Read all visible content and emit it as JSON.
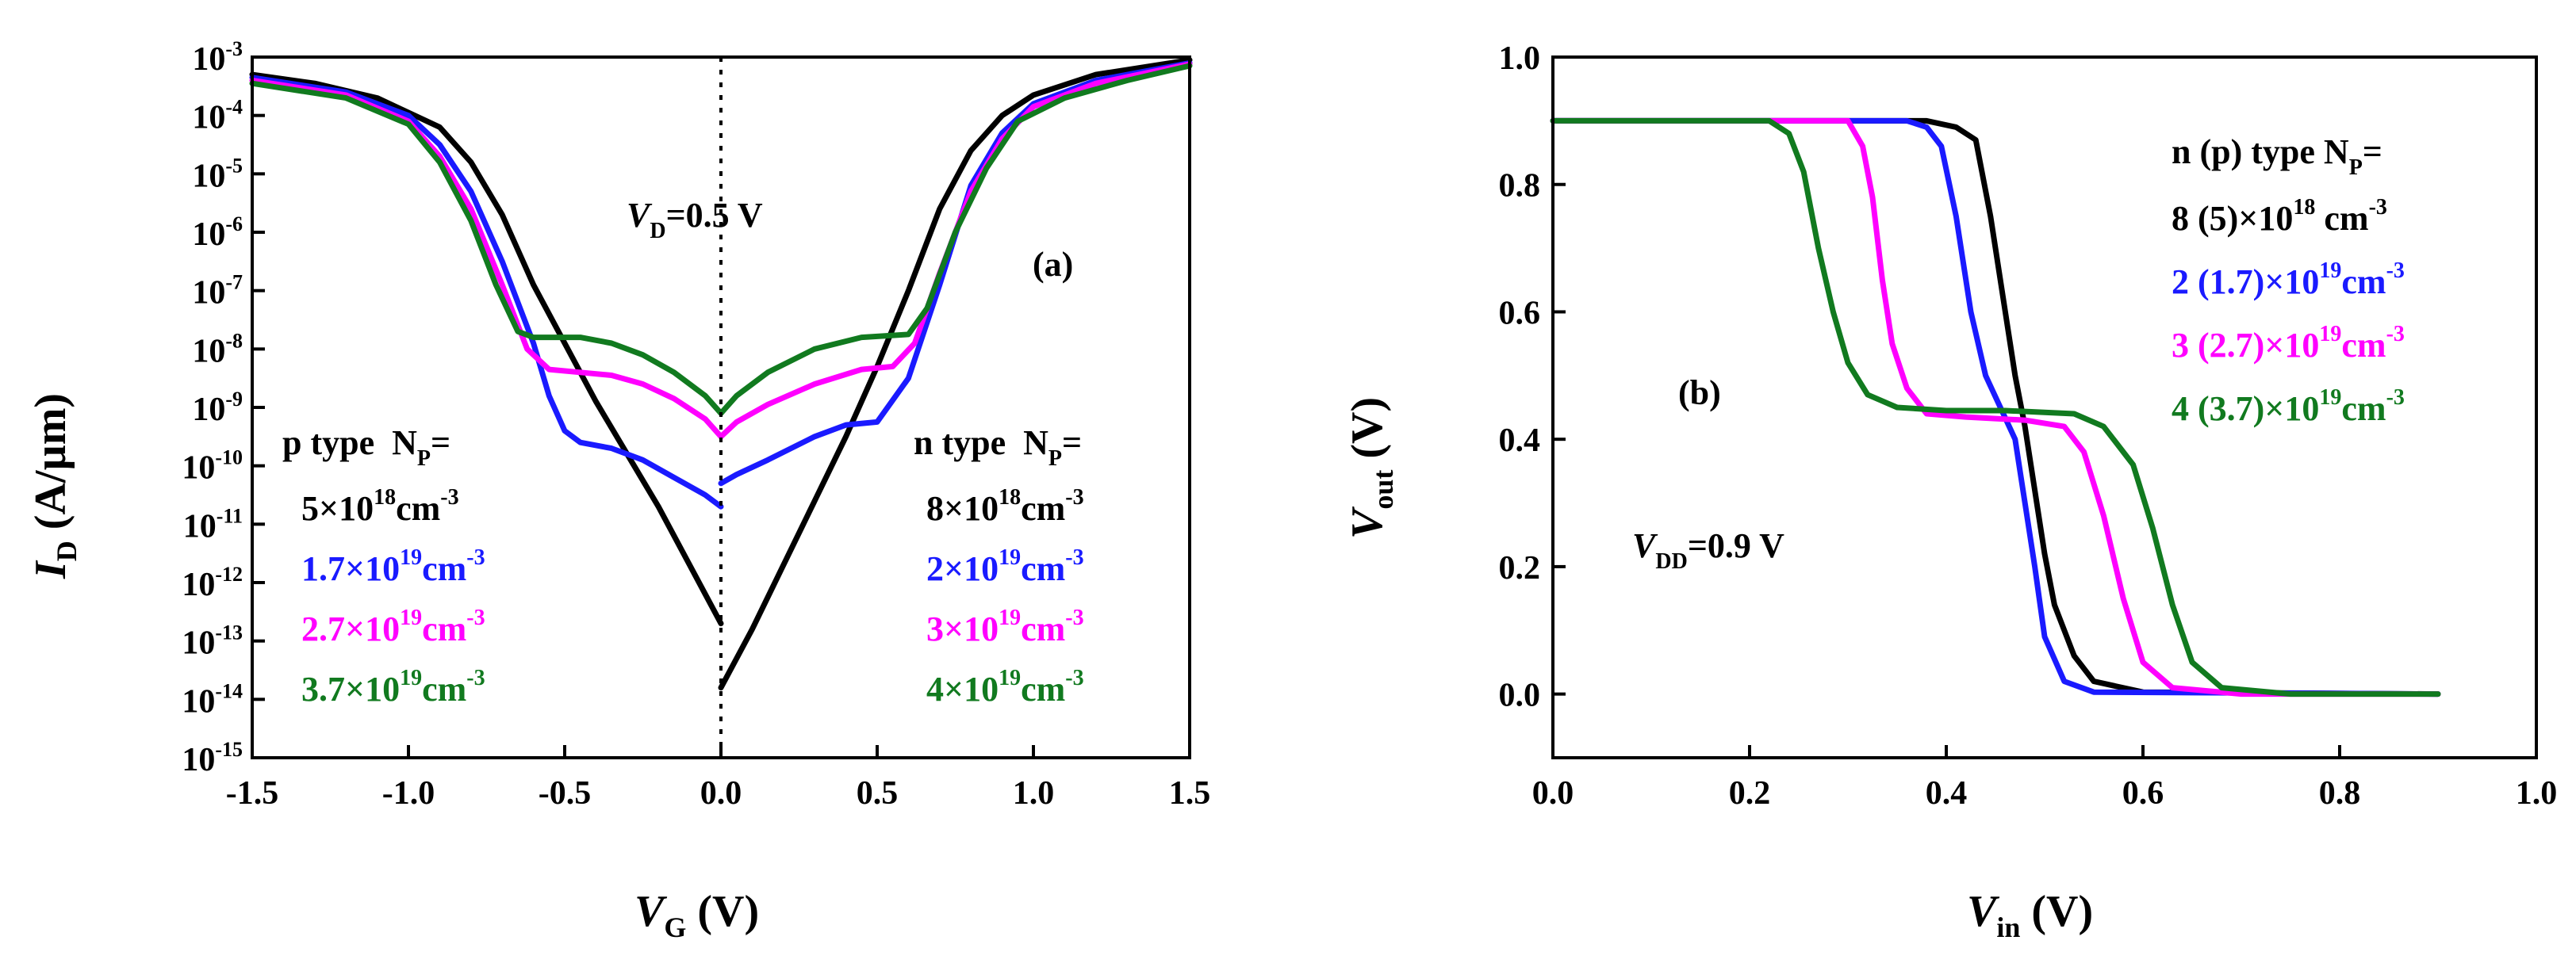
{
  "colors": {
    "black": "#000000",
    "blue": "#1a1aff",
    "magenta": "#ff00ff",
    "green": "#117a1f"
  },
  "chart_data": [
    {
      "panel": "(a)",
      "type": "line",
      "yscale": "log",
      "xlabel": {
        "main": "V",
        "sub": "G",
        "unit": " (V)"
      },
      "ylabel": {
        "main": "I",
        "sub": "D",
        "unit": " (A/µm)"
      },
      "xlim": [
        -1.5,
        1.5
      ],
      "ylim_exp": [
        -15,
        -3
      ],
      "x_ticks": [
        "-1.5",
        "-1.0",
        "-0.5",
        "0.0",
        "0.5",
        "1.0",
        "1.5"
      ],
      "y_tick_exps": [
        "-3",
        "-4",
        "-5",
        "-6",
        "-7",
        "-8",
        "-9",
        "-10",
        "-11",
        "-12",
        "-13",
        "-14",
        "-15"
      ],
      "y_tick_base": "10",
      "vline_x": 0,
      "annotations": {
        "bias": {
          "main": "V",
          "sub": "D",
          "rest": "=0.5 V"
        },
        "label": "(a)",
        "p_head": {
          "text": "p type  N",
          "sub": "P",
          "rest": "="
        },
        "n_head": {
          "text": "n type  N",
          "sub": "P",
          "rest": "="
        },
        "p_items": [
          {
            "base": "5×10",
            "exp": "18",
            "unit": "cm",
            "unit_exp": "-3",
            "color": "black"
          },
          {
            "base": "1.7×10",
            "exp": "19",
            "unit": "cm",
            "unit_exp": "-3",
            "color": "blue"
          },
          {
            "base": "2.7×10",
            "exp": "19",
            "unit": "cm",
            "unit_exp": "-3",
            "color": "magenta"
          },
          {
            "base": "3.7×10",
            "exp": "19",
            "unit": "cm",
            "unit_exp": "-3",
            "color": "green"
          }
        ],
        "n_items": [
          {
            "base": "8×10",
            "exp": "18",
            "unit": "cm",
            "unit_exp": "-3",
            "color": "black"
          },
          {
            "base": "2×10",
            "exp": "19",
            "unit": "cm",
            "unit_exp": "-3",
            "color": "blue"
          },
          {
            "base": "3×10",
            "exp": "19",
            "unit": "cm",
            "unit_exp": "-3",
            "color": "magenta"
          },
          {
            "base": "4×10",
            "exp": "19",
            "unit": "cm",
            "unit_exp": "-3",
            "color": "green"
          }
        ]
      },
      "series": [
        {
          "name": "p 5e18 / n 8e18",
          "color": "black",
          "left": [
            [
              -1.5,
              -3.3
            ],
            [
              -1.3,
              -3.45
            ],
            [
              -1.1,
              -3.7
            ],
            [
              -0.9,
              -4.2
            ],
            [
              -0.8,
              -4.8
            ],
            [
              -0.7,
              -5.7
            ],
            [
              -0.6,
              -6.9
            ],
            [
              -0.5,
              -7.9
            ],
            [
              -0.4,
              -8.9
            ],
            [
              -0.3,
              -9.8
            ],
            [
              -0.2,
              -10.7
            ],
            [
              -0.1,
              -11.7
            ],
            [
              0,
              -12.7
            ]
          ],
          "right": [
            [
              0,
              -13.8
            ],
            [
              0.1,
              -12.8
            ],
            [
              0.2,
              -11.7
            ],
            [
              0.3,
              -10.6
            ],
            [
              0.4,
              -9.5
            ],
            [
              0.5,
              -8.3
            ],
            [
              0.6,
              -7.0
            ],
            [
              0.7,
              -5.6
            ],
            [
              0.8,
              -4.6
            ],
            [
              0.9,
              -4.0
            ],
            [
              1.0,
              -3.65
            ],
            [
              1.2,
              -3.3
            ],
            [
              1.5,
              -3.05
            ]
          ]
        },
        {
          "name": "p 1.7e19 / n 2e19",
          "color": "blue",
          "left": [
            [
              -1.5,
              -3.35
            ],
            [
              -1.2,
              -3.6
            ],
            [
              -1.0,
              -4.0
            ],
            [
              -0.9,
              -4.5
            ],
            [
              -0.8,
              -5.3
            ],
            [
              -0.7,
              -6.5
            ],
            [
              -0.6,
              -7.9
            ],
            [
              -0.55,
              -8.8
            ],
            [
              -0.5,
              -9.4
            ],
            [
              -0.45,
              -9.6
            ],
            [
              -0.35,
              -9.7
            ],
            [
              -0.25,
              -9.9
            ],
            [
              -0.15,
              -10.2
            ],
            [
              -0.05,
              -10.5
            ],
            [
              0,
              -10.7
            ]
          ],
          "right": [
            [
              0,
              -10.3
            ],
            [
              0.05,
              -10.15
            ],
            [
              0.15,
              -9.9
            ],
            [
              0.3,
              -9.5
            ],
            [
              0.4,
              -9.3
            ],
            [
              0.5,
              -9.25
            ],
            [
              0.6,
              -8.5
            ],
            [
              0.7,
              -6.9
            ],
            [
              0.8,
              -5.2
            ],
            [
              0.9,
              -4.3
            ],
            [
              1.0,
              -3.8
            ],
            [
              1.2,
              -3.4
            ],
            [
              1.5,
              -3.1
            ]
          ]
        },
        {
          "name": "p 2.7e19 / n 3e19",
          "color": "magenta",
          "left": [
            [
              -1.5,
              -3.4
            ],
            [
              -1.2,
              -3.65
            ],
            [
              -1.0,
              -4.1
            ],
            [
              -0.9,
              -4.7
            ],
            [
              -0.8,
              -5.6
            ],
            [
              -0.7,
              -6.9
            ],
            [
              -0.62,
              -8.0
            ],
            [
              -0.55,
              -8.35
            ],
            [
              -0.45,
              -8.4
            ],
            [
              -0.35,
              -8.45
            ],
            [
              -0.25,
              -8.6
            ],
            [
              -0.15,
              -8.85
            ],
            [
              -0.05,
              -9.2
            ],
            [
              0,
              -9.5
            ]
          ],
          "right": [
            [
              0,
              -9.5
            ],
            [
              0.05,
              -9.25
            ],
            [
              0.15,
              -8.95
            ],
            [
              0.3,
              -8.6
            ],
            [
              0.45,
              -8.35
            ],
            [
              0.55,
              -8.3
            ],
            [
              0.62,
              -7.9
            ],
            [
              0.7,
              -6.7
            ],
            [
              0.8,
              -5.3
            ],
            [
              0.9,
              -4.4
            ],
            [
              1.0,
              -3.85
            ],
            [
              1.2,
              -3.45
            ],
            [
              1.5,
              -3.12
            ]
          ]
        },
        {
          "name": "p 3.7e19 / n 4e19",
          "color": "green",
          "left": [
            [
              -1.5,
              -3.45
            ],
            [
              -1.2,
              -3.7
            ],
            [
              -1.0,
              -4.15
            ],
            [
              -0.9,
              -4.8
            ],
            [
              -0.8,
              -5.8
            ],
            [
              -0.72,
              -6.9
            ],
            [
              -0.65,
              -7.7
            ],
            [
              -0.6,
              -7.8
            ],
            [
              -0.45,
              -7.8
            ],
            [
              -0.35,
              -7.9
            ],
            [
              -0.25,
              -8.1
            ],
            [
              -0.15,
              -8.4
            ],
            [
              -0.05,
              -8.8
            ],
            [
              0,
              -9.1
            ]
          ],
          "right": [
            [
              0,
              -9.1
            ],
            [
              0.05,
              -8.8
            ],
            [
              0.15,
              -8.4
            ],
            [
              0.3,
              -8.0
            ],
            [
              0.45,
              -7.8
            ],
            [
              0.6,
              -7.75
            ],
            [
              0.66,
              -7.3
            ],
            [
              0.75,
              -6.0
            ],
            [
              0.85,
              -4.9
            ],
            [
              0.95,
              -4.1
            ],
            [
              1.1,
              -3.7
            ],
            [
              1.3,
              -3.4
            ],
            [
              1.5,
              -3.15
            ]
          ]
        }
      ]
    },
    {
      "panel": "(b)",
      "type": "line",
      "xlabel": {
        "main": "V",
        "sub": "in",
        "unit": " (V)"
      },
      "ylabel": {
        "main": "V",
        "sub": "out",
        "unit": " (V)"
      },
      "xlim": [
        0,
        1.0
      ],
      "ylim": [
        -0.1,
        1.0
      ],
      "x_ticks": [
        "0.0",
        "0.2",
        "0.4",
        "0.6",
        "0.8",
        "1.0"
      ],
      "y_ticks": [
        "0.0",
        "0.2",
        "0.4",
        "0.6",
        "0.8",
        "1.0"
      ],
      "annotations": {
        "label": "(b)",
        "vdd": {
          "main": "V",
          "sub": "DD",
          "rest": "=0.9 V"
        },
        "head": {
          "text": "n (p) type N",
          "sub": "P",
          "rest": "="
        },
        "items": [
          {
            "base": "8 (5)×10",
            "exp": "18",
            "unit": " cm",
            "unit_exp": "-3",
            "color": "black"
          },
          {
            "base": "2 (1.7)×10",
            "exp": "19",
            "unit": "cm",
            "unit_exp": "-3",
            "color": "blue"
          },
          {
            "base": "3 (2.7)×10",
            "exp": "19",
            "unit": "cm",
            "unit_exp": "-3",
            "color": "magenta"
          },
          {
            "base": "4 (3.7)×10",
            "exp": "19",
            "unit": "cm",
            "unit_exp": "-3",
            "color": "green"
          }
        ]
      },
      "series": [
        {
          "name": "8 (5)e18",
          "color": "black",
          "points": [
            [
              0,
              0.9
            ],
            [
              0.38,
              0.9
            ],
            [
              0.41,
              0.89
            ],
            [
              0.43,
              0.87
            ],
            [
              0.445,
              0.75
            ],
            [
              0.46,
              0.6
            ],
            [
              0.47,
              0.5
            ],
            [
              0.48,
              0.42
            ],
            [
              0.49,
              0.32
            ],
            [
              0.5,
              0.22
            ],
            [
              0.51,
              0.14
            ],
            [
              0.53,
              0.06
            ],
            [
              0.55,
              0.02
            ],
            [
              0.6,
              0.003
            ],
            [
              0.9,
              0.0
            ]
          ]
        },
        {
          "name": "2 (1.7)e19",
          "color": "blue",
          "points": [
            [
              0,
              0.9
            ],
            [
              0.36,
              0.9
            ],
            [
              0.38,
              0.89
            ],
            [
              0.395,
              0.86
            ],
            [
              0.41,
              0.75
            ],
            [
              0.425,
              0.6
            ],
            [
              0.44,
              0.5
            ],
            [
              0.455,
              0.45
            ],
            [
              0.47,
              0.4
            ],
            [
              0.48,
              0.3
            ],
            [
              0.49,
              0.2
            ],
            [
              0.5,
              0.09
            ],
            [
              0.52,
              0.02
            ],
            [
              0.55,
              0.003
            ],
            [
              0.9,
              0.0
            ]
          ]
        },
        {
          "name": "3 (2.7)e19",
          "color": "magenta",
          "points": [
            [
              0,
              0.9
            ],
            [
              0.3,
              0.9
            ],
            [
              0.315,
              0.86
            ],
            [
              0.325,
              0.78
            ],
            [
              0.335,
              0.65
            ],
            [
              0.345,
              0.55
            ],
            [
              0.36,
              0.48
            ],
            [
              0.38,
              0.44
            ],
            [
              0.42,
              0.435
            ],
            [
              0.48,
              0.43
            ],
            [
              0.52,
              0.42
            ],
            [
              0.54,
              0.38
            ],
            [
              0.56,
              0.28
            ],
            [
              0.58,
              0.15
            ],
            [
              0.6,
              0.05
            ],
            [
              0.63,
              0.01
            ],
            [
              0.7,
              0.0
            ],
            [
              0.9,
              0.0
            ]
          ]
        },
        {
          "name": "4 (3.7)e19",
          "color": "green",
          "points": [
            [
              0,
              0.9
            ],
            [
              0.22,
              0.9
            ],
            [
              0.24,
              0.88
            ],
            [
              0.255,
              0.82
            ],
            [
              0.27,
              0.7
            ],
            [
              0.285,
              0.6
            ],
            [
              0.3,
              0.52
            ],
            [
              0.32,
              0.47
            ],
            [
              0.35,
              0.45
            ],
            [
              0.4,
              0.445
            ],
            [
              0.46,
              0.445
            ],
            [
              0.53,
              0.44
            ],
            [
              0.56,
              0.42
            ],
            [
              0.59,
              0.36
            ],
            [
              0.61,
              0.26
            ],
            [
              0.63,
              0.14
            ],
            [
              0.65,
              0.05
            ],
            [
              0.68,
              0.01
            ],
            [
              0.75,
              0.0
            ],
            [
              0.9,
              0.0
            ]
          ]
        }
      ]
    }
  ]
}
